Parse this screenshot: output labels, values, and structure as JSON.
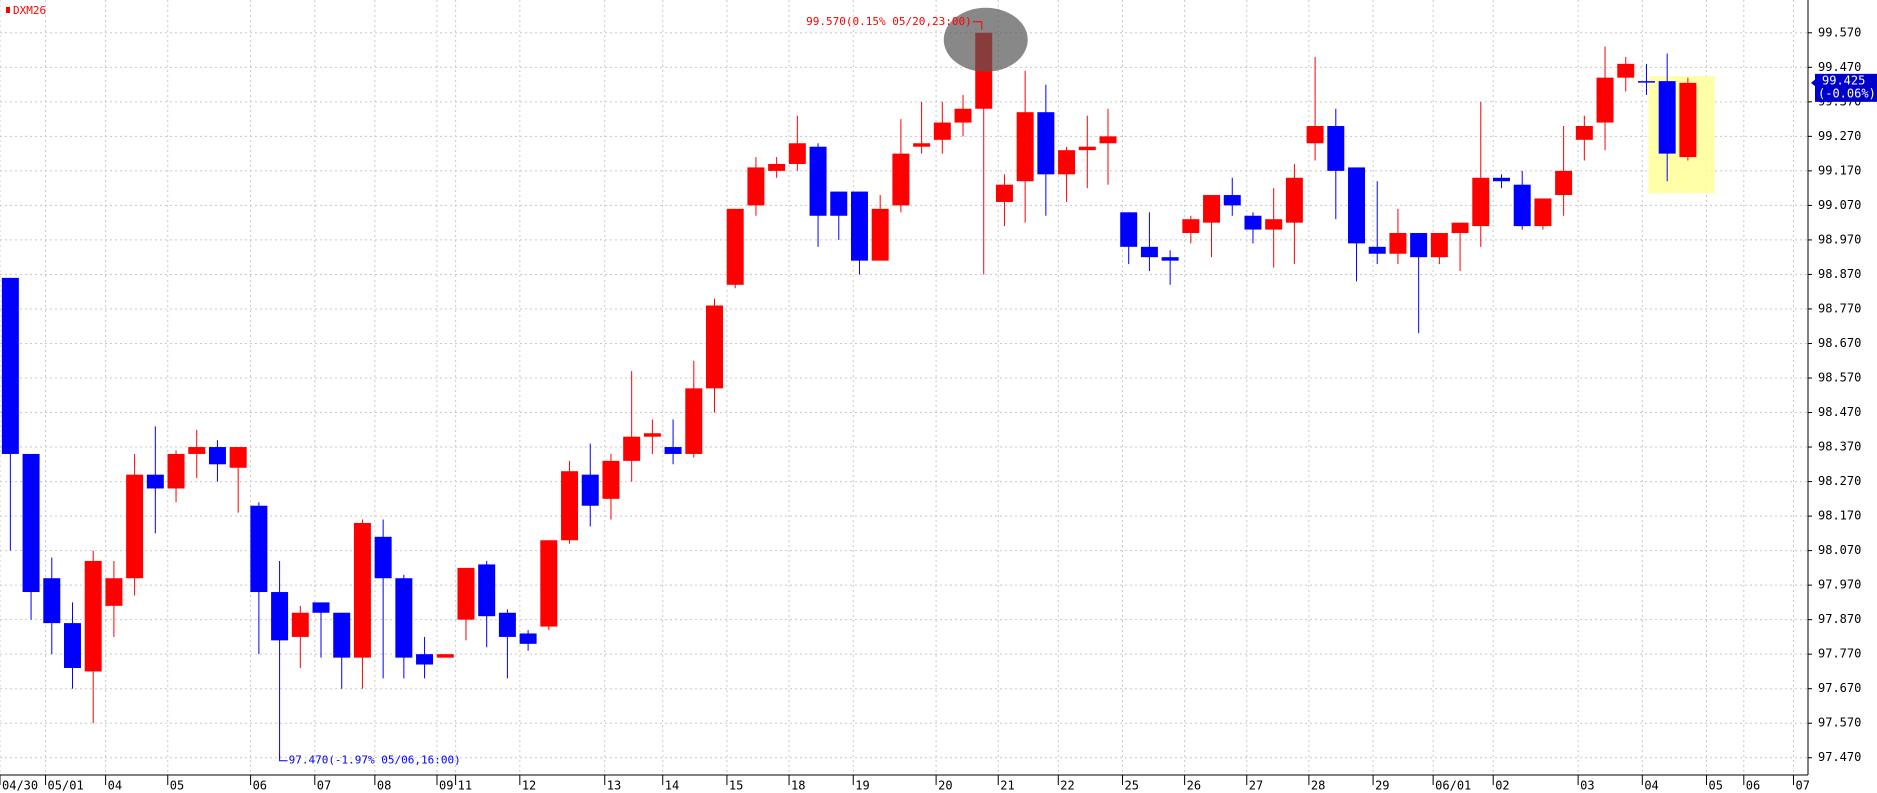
{
  "chart_data": {
    "type": "candlestick",
    "symbol": "DXM26",
    "up_color": "#ff0000",
    "down_color": "#0000ff",
    "open": [
      98.86,
      98.35,
      97.99,
      97.86,
      97.72,
      97.91,
      97.99,
      98.29,
      98.25,
      98.35,
      98.37,
      98.31,
      98.2,
      97.95,
      97.82,
      97.92,
      97.89,
      97.76,
      98.11,
      97.99,
      97.77,
      97.76,
      97.87,
      98.03,
      97.89,
      97.83,
      97.85,
      98.1,
      98.29,
      98.22,
      98.33,
      98.4,
      98.37,
      98.35,
      98.54,
      98.84,
      99.07,
      99.17,
      99.19,
      99.24,
      99.11,
      99.11,
      98.91,
      99.07,
      99.24,
      99.26,
      99.31,
      99.35,
      99.08,
      99.14,
      99.34,
      99.16,
      99.23,
      99.25,
      99.05,
      98.95,
      98.92,
      98.99,
      99.02,
      99.1,
      99.04,
      99.0,
      99.02,
      99.25,
      99.3,
      99.18,
      98.95,
      98.93,
      98.99,
      98.92,
      98.99,
      99.01,
      99.15,
      99.13,
      99.01,
      99.1,
      99.26,
      99.31,
      99.44,
      99.43,
      99.43,
      99.21
    ],
    "high": [
      98.86,
      98.35,
      98.05,
      97.92,
      98.07,
      98.04,
      98.35,
      98.43,
      98.36,
      98.42,
      98.39,
      98.37,
      98.21,
      98.04,
      97.91,
      97.92,
      97.89,
      98.16,
      98.16,
      98.0,
      97.82,
      97.77,
      98.02,
      98.04,
      97.9,
      97.84,
      98.1,
      98.33,
      98.38,
      98.35,
      98.59,
      98.45,
      98.45,
      98.62,
      98.8,
      99.06,
      99.21,
      99.21,
      99.33,
      99.25,
      99.11,
      99.11,
      99.1,
      99.32,
      99.37,
      99.37,
      99.39,
      99.57,
      99.16,
      99.46,
      99.42,
      99.24,
      99.33,
      99.35,
      99.05,
      99.05,
      98.94,
      99.04,
      99.1,
      99.15,
      99.05,
      99.12,
      99.19,
      99.5,
      99.35,
      99.18,
      99.14,
      99.06,
      98.99,
      98.99,
      99.02,
      99.37,
      99.16,
      99.17,
      99.09,
      99.3,
      99.33,
      99.53,
      99.5,
      99.48,
      99.51,
      99.44
    ],
    "low": [
      98.07,
      97.87,
      97.77,
      97.67,
      97.57,
      97.82,
      97.94,
      98.12,
      98.21,
      98.28,
      98.27,
      98.18,
      97.77,
      97.47,
      97.73,
      97.76,
      97.67,
      97.67,
      97.7,
      97.7,
      97.7,
      97.76,
      97.81,
      97.79,
      97.7,
      97.78,
      97.84,
      98.09,
      98.14,
      98.16,
      98.27,
      98.35,
      98.32,
      98.34,
      98.47,
      98.83,
      99.04,
      99.15,
      99.17,
      98.95,
      98.97,
      98.87,
      98.91,
      99.05,
      99.22,
      99.22,
      99.27,
      98.87,
      99.01,
      99.02,
      99.04,
      99.08,
      99.12,
      99.13,
      98.9,
      98.88,
      98.84,
      98.96,
      98.92,
      99.04,
      98.96,
      98.89,
      98.9,
      99.2,
      99.03,
      98.85,
      98.9,
      98.9,
      98.7,
      98.9,
      98.88,
      98.95,
      99.12,
      99.0,
      99.0,
      99.04,
      99.2,
      99.23,
      99.4,
      99.39,
      99.14,
      99.2
    ],
    "close": [
      98.35,
      97.95,
      97.86,
      97.73,
      98.04,
      97.99,
      98.29,
      98.25,
      98.35,
      98.37,
      98.32,
      98.37,
      97.95,
      97.81,
      97.89,
      97.89,
      97.76,
      98.15,
      97.99,
      97.76,
      97.74,
      97.77,
      98.02,
      97.88,
      97.82,
      97.8,
      98.1,
      98.3,
      98.2,
      98.33,
      98.4,
      98.41,
      98.35,
      98.54,
      98.78,
      99.06,
      99.18,
      99.19,
      99.25,
      99.04,
      99.04,
      98.91,
      99.06,
      99.22,
      99.25,
      99.31,
      99.35,
      99.57,
      99.13,
      99.34,
      99.16,
      99.23,
      99.24,
      99.27,
      98.95,
      98.92,
      98.91,
      99.03,
      99.1,
      99.07,
      99.0,
      99.03,
      99.15,
      99.3,
      99.17,
      98.96,
      98.93,
      98.99,
      98.92,
      98.99,
      99.02,
      99.15,
      99.14,
      99.01,
      99.09,
      99.17,
      99.3,
      99.44,
      99.48,
      99.43,
      99.22,
      99.425
    ],
    "xlim": [
      -0.5,
      86.8
    ],
    "xticks": [
      {
        "value": -0.5,
        "label": "04/30"
      },
      {
        "value": 1.7,
        "label": "05/01"
      },
      {
        "value": 4.6,
        "label": "04"
      },
      {
        "value": 7.6,
        "label": "05"
      },
      {
        "value": 11.6,
        "label": "06"
      },
      {
        "value": 14.7,
        "label": "07"
      },
      {
        "value": 17.6,
        "label": "08"
      },
      {
        "value": 20.6,
        "label": "09"
      },
      {
        "value": 21.5,
        "label": "11"
      },
      {
        "value": 24.6,
        "label": "12"
      },
      {
        "value": 28.7,
        "label": "13"
      },
      {
        "value": 31.5,
        "label": "14"
      },
      {
        "value": 34.6,
        "label": "15"
      },
      {
        "value": 37.6,
        "label": "18"
      },
      {
        "value": 40.7,
        "label": "19"
      },
      {
        "value": 44.7,
        "label": "20"
      },
      {
        "value": 47.7,
        "label": "21"
      },
      {
        "value": 50.6,
        "label": "22"
      },
      {
        "value": 53.7,
        "label": "25"
      },
      {
        "value": 56.7,
        "label": "26"
      },
      {
        "value": 59.7,
        "label": "27"
      },
      {
        "value": 62.7,
        "label": "28"
      },
      {
        "value": 65.8,
        "label": "29"
      },
      {
        "value": 68.7,
        "label": "06/01"
      },
      {
        "value": 71.6,
        "label": "02"
      },
      {
        "value": 75.7,
        "label": "03"
      },
      {
        "value": 78.8,
        "label": "04"
      },
      {
        "value": 81.9,
        "label": "05"
      },
      {
        "value": 83.7,
        "label": "06"
      },
      {
        "value": 86.1,
        "label": "07"
      }
    ],
    "ylim": [
      97.42,
      99.665
    ],
    "yticks": [
      {
        "value": 99.57,
        "label": "99.570"
      },
      {
        "value": 99.47,
        "label": "99.470"
      },
      {
        "value": 99.37,
        "label": "99.370"
      },
      {
        "value": 99.27,
        "label": "99.270"
      },
      {
        "value": 99.17,
        "label": "99.170"
      },
      {
        "value": 99.07,
        "label": "99.070"
      },
      {
        "value": 98.97,
        "label": "98.970"
      },
      {
        "value": 98.87,
        "label": "98.870"
      },
      {
        "value": 98.77,
        "label": "98.770"
      },
      {
        "value": 98.67,
        "label": "98.670"
      },
      {
        "value": 98.57,
        "label": "98.570"
      },
      {
        "value": 98.47,
        "label": "98.470"
      },
      {
        "value": 98.37,
        "label": "98.370"
      },
      {
        "value": 98.27,
        "label": "98.270"
      },
      {
        "value": 98.17,
        "label": "98.170"
      },
      {
        "value": 98.07,
        "label": "98.070"
      },
      {
        "value": 97.97,
        "label": "97.970"
      },
      {
        "value": 97.87,
        "label": "97.870"
      },
      {
        "value": 97.77,
        "label": "97.770"
      },
      {
        "value": 97.67,
        "label": "97.670"
      },
      {
        "value": 97.57,
        "label": "97.570"
      },
      {
        "value": 97.47,
        "label": "97.470"
      }
    ],
    "grid": true,
    "high_note": "99.570(0.15% 05/20,23:00)",
    "low_note": "97.470(-1.97% 05/06,16:00)",
    "last_label": "99.425",
    "last_change": "(-0.06%)",
    "tag_color": "#0000cc"
  }
}
